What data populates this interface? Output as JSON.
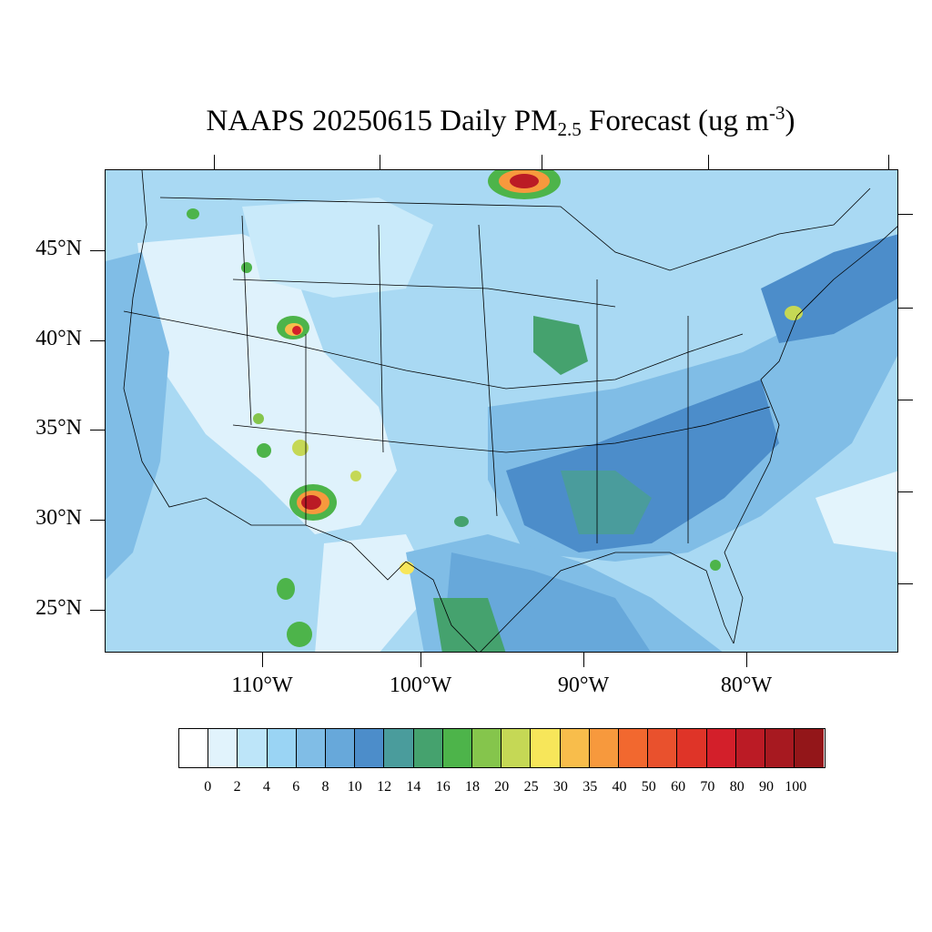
{
  "title": {
    "main": "NAAPS 20250615 Daily PM",
    "subscript": "2.5",
    "tail": " Forecast (ug m",
    "superscript": "-3",
    "close": ")"
  },
  "map": {
    "lat_labels": [
      "45°N",
      "40°N",
      "35°N",
      "30°N",
      "25°N"
    ],
    "lon_labels": [
      "110°W",
      "100°W",
      "90°W",
      "80°W"
    ],
    "background_color": "#a9d9f3",
    "boundary_color": "#000000"
  },
  "legend": {
    "colors": [
      "#ffffff",
      "#e1f3fc",
      "#bde5f9",
      "#9ad4f4",
      "#80bde6",
      "#67a8da",
      "#4c8dca",
      "#4a9c9c",
      "#45a26e",
      "#4db44a",
      "#85c54c",
      "#c5d855",
      "#f7e65a",
      "#f8bd4b",
      "#f7993d",
      "#f2682f",
      "#e9512d",
      "#df3428",
      "#d31f2a",
      "#bb1b25",
      "#a71920",
      "#931619"
    ],
    "labels": [
      "0",
      "2",
      "4",
      "6",
      "8",
      "10",
      "12",
      "14",
      "16",
      "18",
      "20",
      "25",
      "30",
      "35",
      "40",
      "50",
      "60",
      "70",
      "80",
      "90",
      "100"
    ]
  }
}
